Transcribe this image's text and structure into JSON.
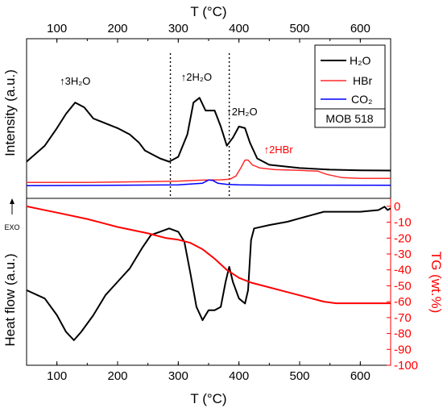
{
  "chart_data": {
    "type": "line",
    "title": "",
    "x_axis": {
      "label": "T (°C)",
      "range": [
        50,
        650
      ],
      "ticks": [
        100,
        200,
        300,
        400,
        500,
        600
      ]
    },
    "top_panel": {
      "ylabel": "Intensity (a.u.)",
      "legend_position": "top-right",
      "label_box": "MOB 518",
      "vertical_lines_x": [
        287,
        384
      ],
      "series": [
        {
          "name": "H₂O",
          "color": "#000000",
          "points": [
            [
              50,
              0.23
            ],
            [
              80,
              0.33
            ],
            [
              100,
              0.44
            ],
            [
              115,
              0.53
            ],
            [
              130,
              0.6
            ],
            [
              145,
              0.57
            ],
            [
              160,
              0.5
            ],
            [
              180,
              0.47
            ],
            [
              200,
              0.44
            ],
            [
              220,
              0.4
            ],
            [
              235,
              0.35
            ],
            [
              245,
              0.3
            ],
            [
              255,
              0.28
            ],
            [
              270,
              0.25
            ],
            [
              285,
              0.23
            ],
            [
              300,
              0.26
            ],
            [
              315,
              0.4
            ],
            [
              325,
              0.6
            ],
            [
              335,
              0.63
            ],
            [
              345,
              0.55
            ],
            [
              360,
              0.55
            ],
            [
              370,
              0.45
            ],
            [
              380,
              0.33
            ],
            [
              390,
              0.38
            ],
            [
              400,
              0.45
            ],
            [
              410,
              0.44
            ],
            [
              418,
              0.35
            ],
            [
              430,
              0.25
            ],
            [
              450,
              0.21
            ],
            [
              500,
              0.19
            ],
            [
              550,
              0.18
            ],
            [
              600,
              0.176
            ],
            [
              650,
              0.174
            ]
          ]
        },
        {
          "name": "HBr",
          "color": "#ff2a2a",
          "points": [
            [
              50,
              0.1
            ],
            [
              150,
              0.1
            ],
            [
              250,
              0.105
            ],
            [
              300,
              0.108
            ],
            [
              330,
              0.113
            ],
            [
              350,
              0.115
            ],
            [
              370,
              0.116
            ],
            [
              385,
              0.12
            ],
            [
              395,
              0.14
            ],
            [
              403,
              0.19
            ],
            [
              410,
              0.24
            ],
            [
              415,
              0.24
            ],
            [
              422,
              0.21
            ],
            [
              435,
              0.19
            ],
            [
              460,
              0.18
            ],
            [
              500,
              0.175
            ],
            [
              530,
              0.17
            ],
            [
              545,
              0.15
            ],
            [
              570,
              0.13
            ],
            [
              600,
              0.125
            ],
            [
              650,
              0.125
            ]
          ]
        },
        {
          "name": "CO₂",
          "color": "#0000ff",
          "points": [
            [
              50,
              0.08
            ],
            [
              200,
              0.082
            ],
            [
              300,
              0.085
            ],
            [
              320,
              0.09
            ],
            [
              340,
              0.095
            ],
            [
              350,
              0.115
            ],
            [
              357,
              0.112
            ],
            [
              365,
              0.095
            ],
            [
              380,
              0.088
            ],
            [
              400,
              0.085
            ],
            [
              450,
              0.083
            ],
            [
              650,
              0.082
            ]
          ]
        }
      ],
      "annotations": [
        {
          "text": "↑3H₂O",
          "x": 130,
          "color": "#000000"
        },
        {
          "text": "↑2H₂O",
          "x": 330,
          "color": "#000000"
        },
        {
          "text": "↑2H₂O",
          "x": 405,
          "color": "#000000"
        },
        {
          "text": "↑2HBr",
          "x": 465,
          "color": "#ff0000"
        }
      ]
    },
    "bottom_panel": {
      "ylabel_left": "Heat flow (a.u.)",
      "ylabel_right": "TG (wt.%)",
      "exo_label": "EXO",
      "right_axis": {
        "range": [
          -100,
          5
        ],
        "ticks": [
          0,
          -10,
          -20,
          -30,
          -40,
          -50,
          -60,
          -70,
          -80,
          -90,
          -100
        ]
      },
      "series": [
        {
          "name": "Heat flow",
          "color": "#000000",
          "axis": "left",
          "points": [
            [
              50,
              0.45
            ],
            [
              80,
              0.4
            ],
            [
              100,
              0.3
            ],
            [
              115,
              0.2
            ],
            [
              128,
              0.15
            ],
            [
              140,
              0.2
            ],
            [
              160,
              0.3
            ],
            [
              180,
              0.42
            ],
            [
              200,
              0.5
            ],
            [
              220,
              0.58
            ],
            [
              240,
              0.7
            ],
            [
              255,
              0.78
            ],
            [
              270,
              0.8
            ],
            [
              285,
              0.82
            ],
            [
              300,
              0.8
            ],
            [
              310,
              0.74
            ],
            [
              320,
              0.55
            ],
            [
              330,
              0.35
            ],
            [
              340,
              0.27
            ],
            [
              345,
              0.3
            ],
            [
              350,
              0.33
            ],
            [
              360,
              0.33
            ],
            [
              370,
              0.35
            ],
            [
              378,
              0.5
            ],
            [
              384,
              0.59
            ],
            [
              390,
              0.5
            ],
            [
              400,
              0.4
            ],
            [
              410,
              0.37
            ],
            [
              415,
              0.45
            ],
            [
              420,
              0.75
            ],
            [
              425,
              0.82
            ],
            [
              450,
              0.84
            ],
            [
              480,
              0.86
            ],
            [
              500,
              0.88
            ],
            [
              520,
              0.9
            ],
            [
              540,
              0.92
            ],
            [
              560,
              0.92
            ],
            [
              600,
              0.92
            ],
            [
              630,
              0.93
            ],
            [
              640,
              0.95
            ],
            [
              645,
              0.93
            ],
            [
              650,
              0.94
            ]
          ]
        },
        {
          "name": "TG",
          "color": "#ff0000",
          "axis": "right",
          "points": [
            [
              50,
              0
            ],
            [
              75,
              -2
            ],
            [
              100,
              -4
            ],
            [
              150,
              -8
            ],
            [
              200,
              -13
            ],
            [
              250,
              -17
            ],
            [
              280,
              -20
            ],
            [
              300,
              -21
            ],
            [
              320,
              -23
            ],
            [
              340,
              -27
            ],
            [
              360,
              -33
            ],
            [
              380,
              -40
            ],
            [
              400,
              -45
            ],
            [
              420,
              -48
            ],
            [
              450,
              -51
            ],
            [
              480,
              -54
            ],
            [
              510,
              -57
            ],
            [
              540,
              -60
            ],
            [
              560,
              -61
            ],
            [
              600,
              -61
            ],
            [
              650,
              -61
            ]
          ]
        }
      ]
    }
  }
}
